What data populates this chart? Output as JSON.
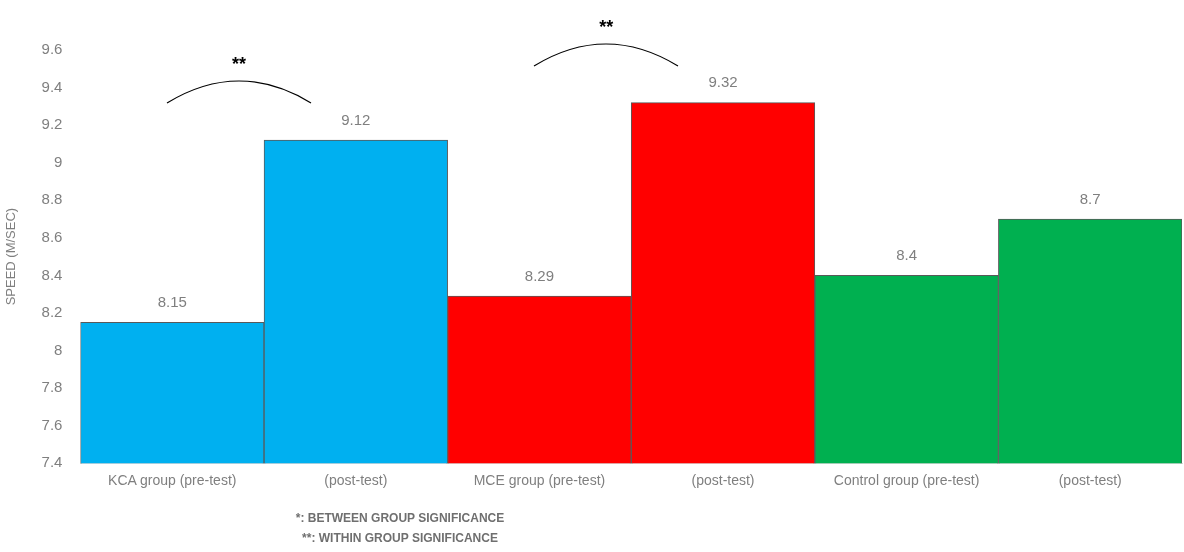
{
  "chart_data": {
    "type": "bar",
    "categories": [
      "KCA group (pre-test)",
      "(post-test)",
      "MCE group (pre-test)",
      "(post-test)",
      "Control group (pre-test)",
      "(post-test)"
    ],
    "values": [
      8.15,
      9.12,
      8.29,
      9.32,
      8.4,
      8.7
    ],
    "colors": [
      "#00b0f0",
      "#00b0f0",
      "#ff0000",
      "#ff0000",
      "#00b050",
      "#00b050"
    ],
    "ylabel": "SPEED (M/SEC)",
    "ylim": [
      7.4,
      9.6
    ],
    "yticks": [
      7.4,
      7.6,
      7.8,
      8,
      8.2,
      8.4,
      8.6,
      8.8,
      9,
      9.2,
      9.4,
      9.6
    ],
    "grid": false,
    "legend": false,
    "data_labels": true,
    "annotations": [
      "**",
      "**",
      "*: BETWEEN GROUP SIGNIFICANCE",
      "**: WITHIN GROUP SIGNIFICANCE"
    ]
  }
}
